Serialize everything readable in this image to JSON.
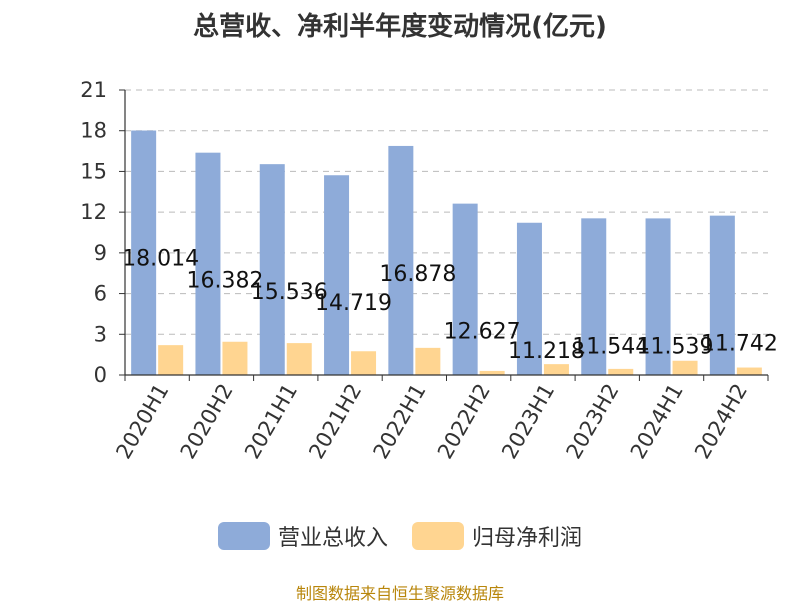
{
  "chart_data": {
    "type": "bar",
    "title": "总营收、净利半年度变动情况(亿元)",
    "categories": [
      "2020H1",
      "2020H2",
      "2021H1",
      "2021H2",
      "2022H1",
      "2022H2",
      "2023H1",
      "2023H2",
      "2024H1",
      "2024H2"
    ],
    "series": [
      {
        "name": "营业总收入",
        "color": "#8eabd9",
        "values": [
          18.014,
          16.382,
          15.536,
          14.719,
          16.878,
          12.627,
          11.218,
          11.544,
          11.539,
          11.742
        ],
        "labels": [
          "18.014",
          "16.382",
          "15.536",
          "14.719",
          "16.878",
          "12.627",
          "11.218",
          "11.544",
          "11.539",
          "11.742"
        ]
      },
      {
        "name": "归母净利润",
        "color": "#ffd591",
        "values": [
          2.2,
          2.45,
          2.35,
          1.75,
          2.0,
          0.3,
          0.8,
          0.45,
          1.05,
          0.55
        ]
      }
    ],
    "ylim": [
      0,
      21
    ],
    "yticks": [
      "0",
      "3",
      "6",
      "9",
      "12",
      "15",
      "18",
      "21"
    ],
    "grid": true,
    "legend": "bottom-center"
  },
  "source": "制图数据来自恒生聚源数据库"
}
